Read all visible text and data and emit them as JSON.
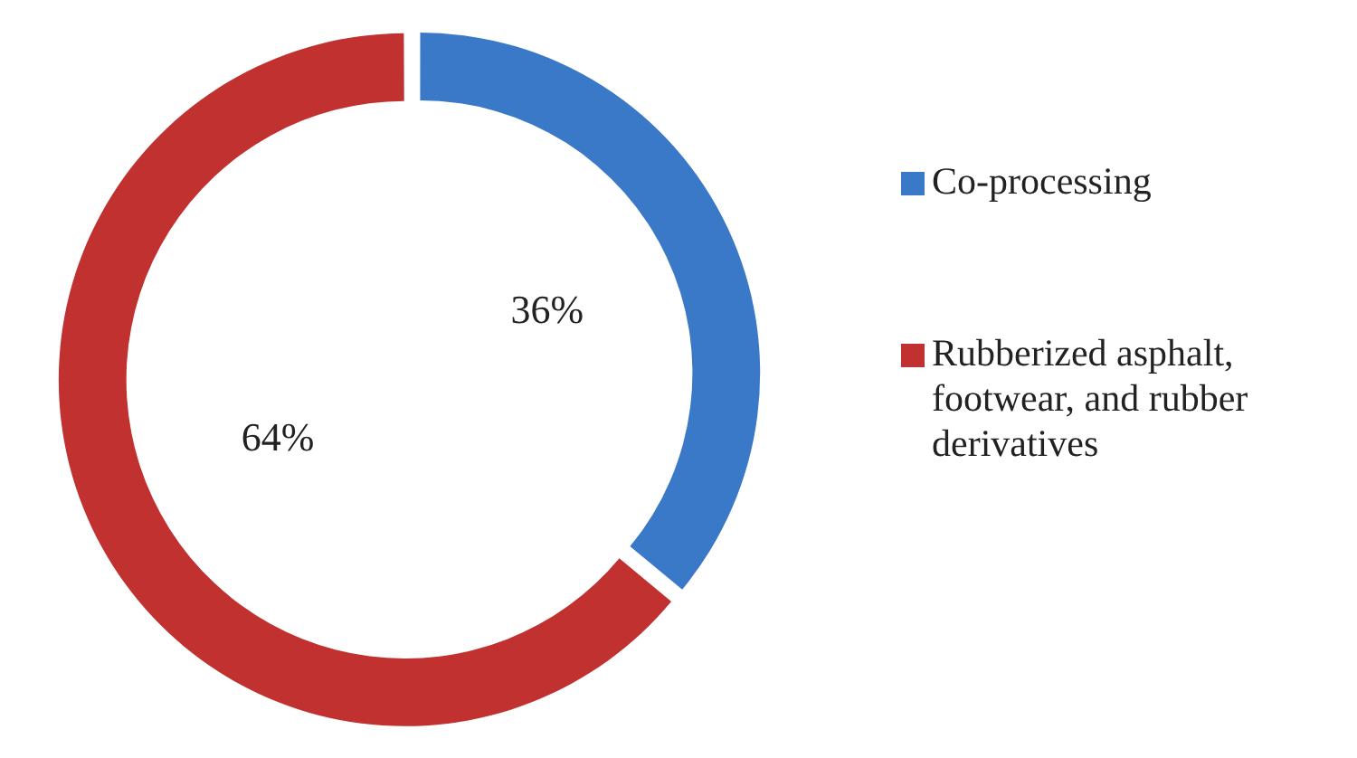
{
  "chart_data": {
    "type": "donut",
    "categories": [
      "Co-processing",
      "Rubberized asphalt, footwear, and rubber derivatives"
    ],
    "values": [
      36,
      64
    ],
    "colors": [
      "#3a78c8",
      "#c0312f"
    ],
    "value_labels": [
      "36%",
      "64%"
    ],
    "legend": "right"
  }
}
